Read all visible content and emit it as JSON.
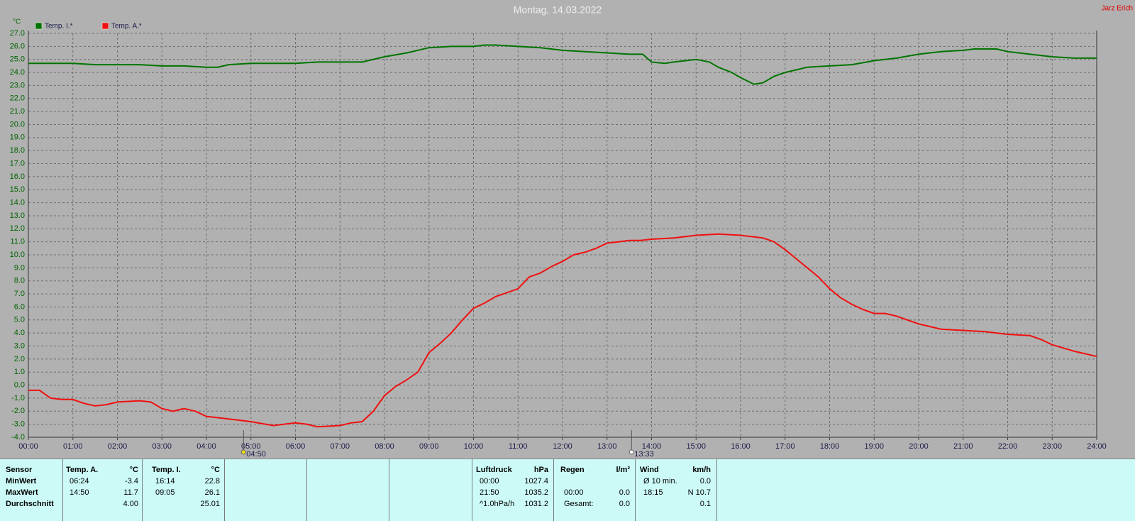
{
  "chart_data": {
    "type": "line",
    "title": "Montag, 14.03.2022",
    "author": "Jarz Erich",
    "y_unit": "°C",
    "xlim": [
      0,
      24
    ],
    "xticks": [
      {
        "value": 0,
        "label": "00:00"
      },
      {
        "value": 1,
        "label": "01:00"
      },
      {
        "value": 2,
        "label": "02:00"
      },
      {
        "value": 3,
        "label": "03:00"
      },
      {
        "value": 4,
        "label": "04:00"
      },
      {
        "value": 5,
        "label": "05:00"
      },
      {
        "value": 6,
        "label": "06:00"
      },
      {
        "value": 7,
        "label": "07:00"
      },
      {
        "value": 8,
        "label": "08:00"
      },
      {
        "value": 9,
        "label": "09:00"
      },
      {
        "value": 10,
        "label": "10:00"
      },
      {
        "value": 11,
        "label": "11:00"
      },
      {
        "value": 12,
        "label": "12:00"
      },
      {
        "value": 13,
        "label": "13:00"
      },
      {
        "value": 14,
        "label": "14:00"
      },
      {
        "value": 15,
        "label": "15:00"
      },
      {
        "value": 16,
        "label": "16:00"
      },
      {
        "value": 17,
        "label": "17:00"
      },
      {
        "value": 18,
        "label": "18:00"
      },
      {
        "value": 19,
        "label": "19:00"
      },
      {
        "value": 20,
        "label": "20:00"
      },
      {
        "value": 21,
        "label": "21:00"
      },
      {
        "value": 22,
        "label": "22:00"
      },
      {
        "value": 23,
        "label": "23:00"
      },
      {
        "value": 24,
        "label": "24:00"
      }
    ],
    "ylim": [
      -4,
      27
    ],
    "yticks": [
      {
        "value": 27,
        "label": "27.0"
      },
      {
        "value": 26,
        "label": "26.0"
      },
      {
        "value": 25,
        "label": "25.0"
      },
      {
        "value": 24,
        "label": "24.0"
      },
      {
        "value": 23,
        "label": "23.0"
      },
      {
        "value": 22,
        "label": "22.0"
      },
      {
        "value": 21,
        "label": "21.0"
      },
      {
        "value": 20,
        "label": "20.0"
      },
      {
        "value": 19,
        "label": "19.0"
      },
      {
        "value": 18,
        "label": "18.0"
      },
      {
        "value": 17,
        "label": "17.0"
      },
      {
        "value": 16,
        "label": "16.0"
      },
      {
        "value": 15,
        "label": "15.0"
      },
      {
        "value": 14,
        "label": "14.0"
      },
      {
        "value": 13,
        "label": "13.0"
      },
      {
        "value": 12,
        "label": "12.0"
      },
      {
        "value": 11,
        "label": "11.0"
      },
      {
        "value": 10,
        "label": "10.0"
      },
      {
        "value": 9,
        "label": "9.0"
      },
      {
        "value": 8,
        "label": "8.0"
      },
      {
        "value": 7,
        "label": "7.0"
      },
      {
        "value": 6,
        "label": "6.0"
      },
      {
        "value": 5,
        "label": "5.0"
      },
      {
        "value": 4,
        "label": "4.0"
      },
      {
        "value": 3,
        "label": "3.0"
      },
      {
        "value": 2,
        "label": "2.0"
      },
      {
        "value": 1,
        "label": "1.0"
      },
      {
        "value": 0,
        "label": "0.0"
      },
      {
        "value": -1,
        "label": "-1.0"
      },
      {
        "value": -2,
        "label": "-2.0"
      },
      {
        "value": -3,
        "label": "-3.0"
      },
      {
        "value": -4,
        "label": "-4.0"
      }
    ],
    "grid": true,
    "sun_markers": [
      {
        "value": 4.8333,
        "label": "04:50"
      },
      {
        "value": 13.55,
        "label": "13:33"
      }
    ],
    "series": [
      {
        "name": "Temp. I.*",
        "color": "#007400",
        "x": [
          0,
          1,
          1.5,
          2,
          2.5,
          3,
          3.5,
          4,
          4.25,
          4.5,
          5,
          6,
          6.5,
          7,
          7.5,
          8,
          8.5,
          9,
          9.5,
          10,
          10.25,
          10.5,
          11,
          11.5,
          12,
          12.5,
          13,
          13.5,
          13.8,
          14,
          14.3,
          14.5,
          15,
          15.3,
          15.5,
          15.8,
          16,
          16.3,
          16.5,
          16.75,
          17,
          17.25,
          17.5,
          18,
          18.5,
          19,
          19.5,
          20,
          20.5,
          21,
          21.25,
          21.75,
          22,
          22.5,
          23,
          23.5,
          24
        ],
        "values": [
          24.7,
          24.7,
          24.6,
          24.6,
          24.6,
          24.5,
          24.5,
          24.4,
          24.4,
          24.6,
          24.7,
          24.7,
          24.8,
          24.8,
          24.8,
          25.2,
          25.5,
          25.9,
          26.0,
          26.0,
          26.1,
          26.1,
          26.0,
          25.9,
          25.7,
          25.6,
          25.5,
          25.4,
          25.4,
          24.8,
          24.7,
          24.8,
          25.0,
          24.8,
          24.4,
          24.0,
          23.6,
          23.1,
          23.2,
          23.7,
          24.0,
          24.2,
          24.4,
          24.5,
          24.6,
          24.9,
          25.1,
          25.4,
          25.6,
          25.7,
          25.8,
          25.8,
          25.6,
          25.4,
          25.2,
          25.1,
          25.1
        ]
      },
      {
        "name": "Temp. A.*",
        "color": "#f01010",
        "x": [
          0,
          0.25,
          0.5,
          0.75,
          1,
          1.25,
          1.5,
          1.75,
          2,
          2.5,
          2.75,
          3,
          3.25,
          3.5,
          3.75,
          4,
          4.5,
          5,
          5.5,
          6,
          6.25,
          6.5,
          7,
          7.25,
          7.5,
          7.75,
          8,
          8.25,
          8.5,
          8.75,
          9,
          9.25,
          9.5,
          9.75,
          10,
          10.25,
          10.5,
          10.75,
          11,
          11.25,
          11.5,
          11.75,
          12,
          12.25,
          12.5,
          12.75,
          13,
          13.25,
          13.5,
          13.75,
          14,
          14.5,
          15,
          15.5,
          16,
          16.5,
          16.75,
          17,
          17.25,
          17.5,
          17.75,
          18,
          18.25,
          18.5,
          18.75,
          19,
          19.25,
          19.5,
          19.75,
          20,
          20.25,
          20.5,
          21,
          21.5,
          22,
          22.5,
          22.75,
          23,
          23.5,
          24
        ],
        "values": [
          -0.4,
          -0.4,
          -1.0,
          -1.1,
          -1.1,
          -1.4,
          -1.6,
          -1.5,
          -1.3,
          -1.2,
          -1.3,
          -1.8,
          -2.0,
          -1.8,
          -2.0,
          -2.4,
          -2.6,
          -2.8,
          -3.1,
          -2.9,
          -3.0,
          -3.2,
          -3.1,
          -2.9,
          -2.8,
          -2.0,
          -0.8,
          -0.1,
          0.4,
          1.0,
          2.5,
          3.2,
          4.0,
          5.0,
          5.9,
          6.3,
          6.8,
          7.1,
          7.4,
          8.3,
          8.6,
          9.1,
          9.5,
          10.0,
          10.2,
          10.5,
          10.9,
          11.0,
          11.1,
          11.1,
          11.2,
          11.3,
          11.5,
          11.6,
          11.5,
          11.3,
          11.0,
          10.4,
          9.7,
          9.0,
          8.3,
          7.4,
          6.7,
          6.2,
          5.8,
          5.5,
          5.5,
          5.3,
          5.0,
          4.7,
          4.5,
          4.3,
          4.2,
          4.1,
          3.9,
          3.8,
          3.5,
          3.1,
          2.6,
          2.2
        ]
      }
    ]
  },
  "table": {
    "sensor": {
      "header": "Sensor",
      "rows": [
        "MinWert",
        "MaxWert",
        "Durchschnitt"
      ]
    },
    "blocks": [
      {
        "header": [
          "Temp. A.",
          "°C"
        ],
        "rows": [
          [
            "06:24",
            "-3.4"
          ],
          [
            "14:50",
            "11.7"
          ],
          [
            null,
            "4.00"
          ]
        ]
      },
      {
        "header": [
          "Temp. I.",
          "°C"
        ],
        "rows": [
          [
            "16:14",
            "22.8"
          ],
          [
            "09:05",
            "26.1"
          ],
          [
            null,
            "25.01"
          ]
        ]
      },
      {
        "header": [
          "Luftdruck",
          "hPa"
        ],
        "rows": [
          [
            "00:00",
            "1027.4"
          ],
          [
            "21:50",
            "1035.2"
          ],
          [
            "^1.0hPa/h",
            "1031.2"
          ]
        ]
      },
      {
        "header": [
          "Regen",
          "l/m²"
        ],
        "rows": [
          [
            null,
            null
          ],
          [
            "00:00",
            "0.0"
          ],
          [
            "Gesamt:",
            "0.0"
          ]
        ]
      },
      {
        "header": [
          "Wind",
          "km/h"
        ],
        "rows": [
          [
            "Ø 10 min.",
            "0.0"
          ],
          [
            "18:15",
            "N 10.7"
          ],
          [
            null,
            "0.1"
          ]
        ]
      }
    ]
  }
}
